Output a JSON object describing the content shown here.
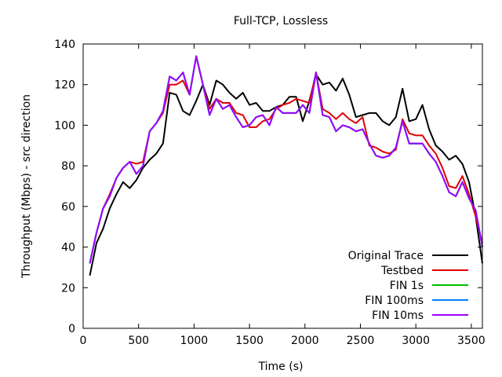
{
  "chart_data": {
    "type": "line",
    "title": "Full-TCP, Lossless",
    "xlabel": "Time (s)",
    "ylabel": "Throughput (Mbps) - src direction",
    "xlim": [
      0,
      3600
    ],
    "ylim": [
      0,
      140
    ],
    "xticks": [
      0,
      500,
      1000,
      1500,
      2000,
      2500,
      3000,
      3500
    ],
    "yticks": [
      0,
      20,
      40,
      60,
      80,
      100,
      120,
      140
    ],
    "grid": false,
    "legend_position": "bottom-right",
    "x": [
      60,
      120,
      180,
      240,
      300,
      360,
      420,
      480,
      540,
      600,
      660,
      720,
      780,
      840,
      900,
      960,
      1020,
      1080,
      1140,
      1200,
      1260,
      1320,
      1380,
      1440,
      1500,
      1560,
      1620,
      1680,
      1740,
      1800,
      1860,
      1920,
      1980,
      2040,
      2100,
      2160,
      2220,
      2280,
      2340,
      2400,
      2460,
      2520,
      2580,
      2640,
      2700,
      2760,
      2820,
      2880,
      2940,
      3000,
      3060,
      3120,
      3180,
      3240,
      3300,
      3360,
      3420,
      3480,
      3540,
      3600
    ],
    "series": [
      {
        "name": "Original Trace",
        "color": "#000000",
        "values": [
          26,
          42,
          49,
          59,
          66,
          72,
          69,
          73,
          79,
          83,
          86,
          91,
          116,
          115,
          107,
          105,
          112,
          120,
          110,
          122,
          120,
          116,
          113,
          116,
          110,
          111,
          107,
          107,
          109,
          110,
          114,
          114,
          102,
          112,
          125,
          120,
          121,
          117,
          123,
          115,
          104,
          105,
          106,
          106,
          102,
          100,
          104,
          118,
          102,
          103,
          110,
          98,
          90,
          87,
          83,
          85,
          81,
          72,
          55,
          32
        ]
      },
      {
        "name": "Testbed",
        "color": "#e00000",
        "values": [
          32,
          47,
          59,
          66,
          74,
          79,
          82,
          81,
          82,
          97,
          101,
          106,
          120,
          120,
          122,
          115,
          134,
          120,
          108,
          113,
          111,
          111,
          106,
          105,
          99,
          99,
          102,
          103,
          108,
          110,
          111,
          113,
          112,
          111,
          126,
          108,
          106,
          103,
          106,
          103,
          101,
          104,
          90,
          89,
          87,
          86,
          88,
          103,
          96,
          95,
          95,
          90,
          86,
          79,
          70,
          69,
          75,
          66,
          55,
          42
        ]
      },
      {
        "name": "FIN 1s",
        "color": "#00c000",
        "values": [
          32,
          47,
          59,
          65,
          74,
          79,
          82,
          76,
          80,
          97,
          101,
          107,
          124,
          122,
          126,
          115,
          134,
          120,
          105,
          113,
          108,
          110,
          104,
          99,
          100,
          104,
          105,
          100,
          109,
          106,
          106,
          106,
          110,
          106,
          126,
          105,
          104,
          97,
          100,
          99,
          97,
          98,
          91,
          85,
          84,
          85,
          89,
          102,
          91,
          91,
          91,
          86,
          82,
          75,
          67,
          65,
          72,
          64,
          58,
          40
        ]
      },
      {
        "name": "FIN 100ms",
        "color": "#0080ff",
        "values": [
          32,
          47,
          59,
          65,
          74,
          79,
          82,
          76,
          80,
          97,
          101,
          107,
          124,
          122,
          126,
          115,
          134,
          120,
          105,
          113,
          108,
          110,
          104,
          99,
          100,
          104,
          105,
          100,
          109,
          106,
          106,
          106,
          110,
          106,
          126,
          105,
          104,
          97,
          100,
          99,
          97,
          98,
          91,
          85,
          84,
          85,
          89,
          102,
          91,
          91,
          91,
          86,
          82,
          75,
          67,
          65,
          72,
          64,
          58,
          40
        ]
      },
      {
        "name": "FIN 10ms",
        "color": "#a000ff",
        "values": [
          32,
          47,
          59,
          65,
          74,
          79,
          82,
          76,
          80,
          97,
          101,
          107,
          124,
          122,
          126,
          115,
          134,
          120,
          105,
          113,
          108,
          110,
          104,
          99,
          100,
          104,
          105,
          100,
          109,
          106,
          106,
          106,
          110,
          106,
          126,
          105,
          104,
          97,
          100,
          99,
          97,
          98,
          91,
          85,
          84,
          85,
          89,
          102,
          91,
          91,
          91,
          86,
          82,
          75,
          67,
          65,
          72,
          64,
          58,
          40
        ]
      }
    ]
  }
}
